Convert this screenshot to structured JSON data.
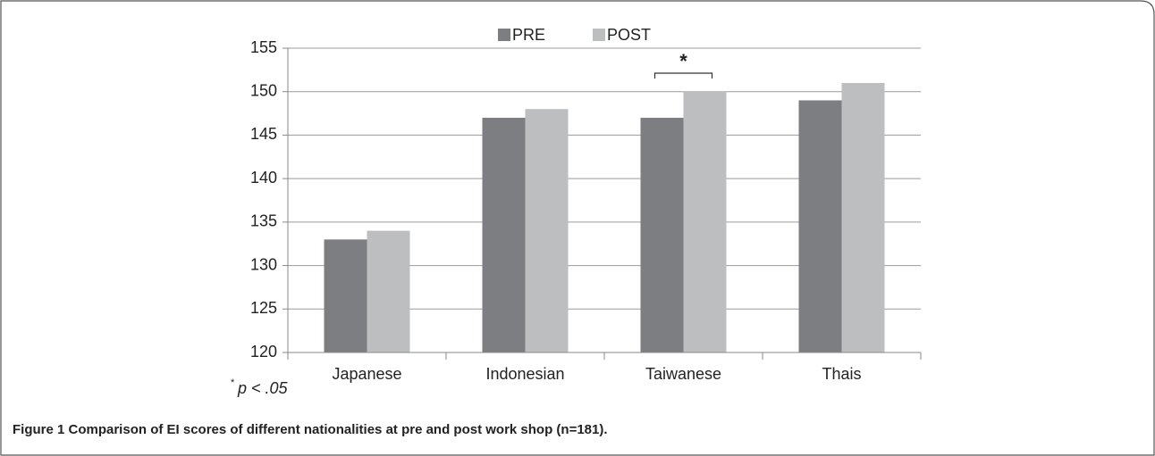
{
  "chart_data": {
    "type": "bar",
    "categories": [
      "Japanese",
      "Indonesian",
      "Taiwanese",
      "Thais"
    ],
    "series": [
      {
        "name": "PRE",
        "color": "#7d7e82",
        "values": [
          133,
          147,
          147,
          149
        ]
      },
      {
        "name": "POST",
        "color": "#bdbec0",
        "values": [
          134,
          148,
          150,
          151
        ]
      }
    ],
    "ylim": [
      120,
      155
    ],
    "yticks": [
      120,
      125,
      130,
      135,
      140,
      145,
      150,
      155
    ],
    "grid": true,
    "legend": "top",
    "annotation": "*",
    "footnote_marker": "*",
    "footnote": "p < .05",
    "caption": "Figure 1 Comparison of EI scores of different nationalities at pre and post work shop (n=181)."
  }
}
